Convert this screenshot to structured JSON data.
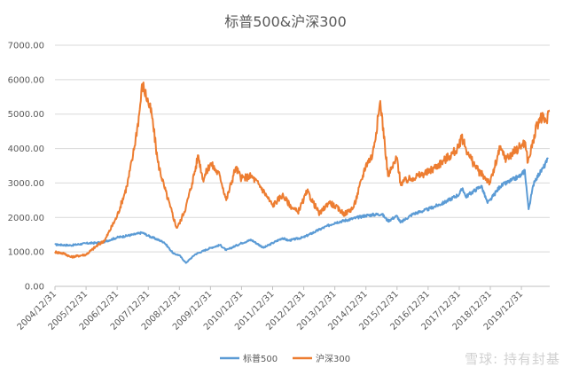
{
  "chart_data": {
    "type": "line",
    "title": "标普500&沪深300",
    "xlabel": "",
    "ylabel": "",
    "ylim": [
      0,
      7000
    ],
    "ytick_labels": [
      "0.00",
      "1000.00",
      "2000.00",
      "3000.00",
      "4000.00",
      "5000.00",
      "6000.00",
      "7000.00"
    ],
    "x_categories": [
      "2004/12/31",
      "2005/12/31",
      "2006/12/31",
      "2007/12/31",
      "2008/12/31",
      "2009/12/31",
      "2010/12/31",
      "2011/12/31",
      "2012/12/31",
      "2013/12/31",
      "2014/12/31",
      "2015/12/31",
      "2016/12/31",
      "2017/12/31",
      "2018/12/31",
      "2019/12/31"
    ],
    "grid": "horizontal",
    "legend": "bottom",
    "series": [
      {
        "name": "标普500",
        "color": "#5B9BD5",
        "points": [
          [
            2004.99,
            1212
          ],
          [
            2005.5,
            1190
          ],
          [
            2005.99,
            1248
          ],
          [
            2006.5,
            1270
          ],
          [
            2006.99,
            1418
          ],
          [
            2007.5,
            1500
          ],
          [
            2007.8,
            1560
          ],
          [
            2007.99,
            1468
          ],
          [
            2008.5,
            1280
          ],
          [
            2008.8,
            950
          ],
          [
            2008.99,
            903
          ],
          [
            2009.2,
            680
          ],
          [
            2009.5,
            930
          ],
          [
            2009.99,
            1115
          ],
          [
            2010.3,
            1200
          ],
          [
            2010.5,
            1050
          ],
          [
            2010.99,
            1257
          ],
          [
            2011.3,
            1350
          ],
          [
            2011.7,
            1120
          ],
          [
            2011.99,
            1257
          ],
          [
            2012.3,
            1400
          ],
          [
            2012.5,
            1330
          ],
          [
            2012.99,
            1426
          ],
          [
            2013.5,
            1650
          ],
          [
            2013.99,
            1848
          ],
          [
            2014.5,
            1950
          ],
          [
            2014.99,
            2058
          ],
          [
            2015.5,
            2100
          ],
          [
            2015.7,
            1900
          ],
          [
            2015.99,
            2043
          ],
          [
            2016.1,
            1850
          ],
          [
            2016.5,
            2100
          ],
          [
            2016.99,
            2238
          ],
          [
            2017.5,
            2430
          ],
          [
            2017.99,
            2673
          ],
          [
            2018.1,
            2850
          ],
          [
            2018.2,
            2600
          ],
          [
            2018.7,
            2920
          ],
          [
            2018.9,
            2420
          ],
          [
            2018.99,
            2506
          ],
          [
            2019.3,
            2900
          ],
          [
            2019.99,
            3230
          ],
          [
            2020.1,
            3380
          ],
          [
            2020.22,
            2240
          ],
          [
            2020.4,
            3050
          ],
          [
            2020.7,
            3450
          ],
          [
            2020.85,
            3700
          ]
        ]
      },
      {
        "name": "沪深300",
        "color": "#ED7D31",
        "points": [
          [
            2004.99,
            1000
          ],
          [
            2005.3,
            950
          ],
          [
            2005.5,
            850
          ],
          [
            2005.99,
            923
          ],
          [
            2006.3,
            1150
          ],
          [
            2006.6,
            1350
          ],
          [
            2006.99,
            2041
          ],
          [
            2007.3,
            2900
          ],
          [
            2007.5,
            3800
          ],
          [
            2007.7,
            5000
          ],
          [
            2007.8,
            5877
          ],
          [
            2007.99,
            5338
          ],
          [
            2008.1,
            5000
          ],
          [
            2008.3,
            3600
          ],
          [
            2008.5,
            2900
          ],
          [
            2008.7,
            2300
          ],
          [
            2008.9,
            1700
          ],
          [
            2008.99,
            1817
          ],
          [
            2009.2,
            2300
          ],
          [
            2009.4,
            3000
          ],
          [
            2009.6,
            3800
          ],
          [
            2009.75,
            3100
          ],
          [
            2009.99,
            3575
          ],
          [
            2010.3,
            3200
          ],
          [
            2010.5,
            2500
          ],
          [
            2010.8,
            3450
          ],
          [
            2010.99,
            3128
          ],
          [
            2011.3,
            3200
          ],
          [
            2011.6,
            2900
          ],
          [
            2011.99,
            2346
          ],
          [
            2012.3,
            2650
          ],
          [
            2012.6,
            2300
          ],
          [
            2012.8,
            2150
          ],
          [
            2012.99,
            2522
          ],
          [
            2013.1,
            2750
          ],
          [
            2013.5,
            2100
          ],
          [
            2013.8,
            2450
          ],
          [
            2013.99,
            2330
          ],
          [
            2014.3,
            2100
          ],
          [
            2014.6,
            2300
          ],
          [
            2014.99,
            3533
          ],
          [
            2015.2,
            3800
          ],
          [
            2015.4,
            5000
          ],
          [
            2015.45,
            5380
          ],
          [
            2015.6,
            4100
          ],
          [
            2015.7,
            3200
          ],
          [
            2015.99,
            3731
          ],
          [
            2016.1,
            3000
          ],
          [
            2016.5,
            3150
          ],
          [
            2016.99,
            3310
          ],
          [
            2017.5,
            3650
          ],
          [
            2017.99,
            4030
          ],
          [
            2018.05,
            4380
          ],
          [
            2018.3,
            3800
          ],
          [
            2018.6,
            3350
          ],
          [
            2018.99,
            3010
          ],
          [
            2019.3,
            4000
          ],
          [
            2019.5,
            3700
          ],
          [
            2019.99,
            4096
          ],
          [
            2020.1,
            4200
          ],
          [
            2020.2,
            3600
          ],
          [
            2020.5,
            4700
          ],
          [
            2020.6,
            4900
          ],
          [
            2020.8,
            4800
          ],
          [
            2020.9,
            5100
          ]
        ]
      }
    ]
  },
  "watermark": "雪球: 持有封基"
}
